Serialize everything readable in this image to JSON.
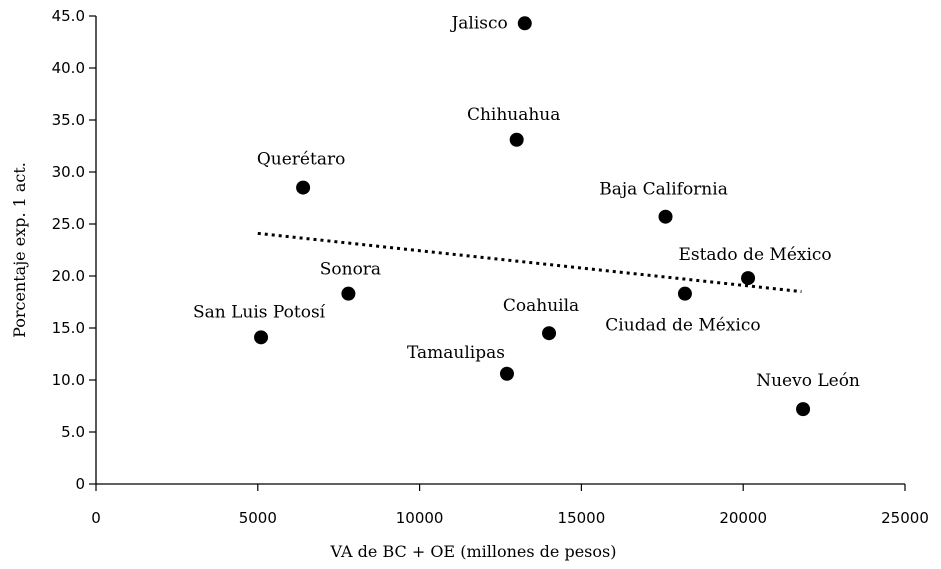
{
  "chart_data": {
    "type": "scatter",
    "title": "",
    "xlabel": "VA de BC + OE (millones de pesos)",
    "ylabel": "Porcentaje exp. 1 act.",
    "xlim": [
      0,
      25000
    ],
    "ylim": [
      0,
      45
    ],
    "xticks": [
      0,
      5000,
      10000,
      15000,
      20000,
      25000
    ],
    "xtick_labels": [
      "0",
      "5000",
      "10000",
      "15000",
      "20000",
      "25000"
    ],
    "yticks": [
      0,
      5,
      10,
      15,
      20,
      25,
      30,
      35,
      40,
      45
    ],
    "ytick_labels": [
      "0",
      "5.0",
      "10.0",
      "15.0",
      "20.0",
      "25.0",
      "30.0",
      "35.0",
      "40.0",
      "45.0"
    ],
    "grid": false,
    "points": [
      {
        "label": "Jalisco",
        "x": 13250,
        "y": 44.3
      },
      {
        "label": "Chihuahua",
        "x": 13000,
        "y": 33.1
      },
      {
        "label": "Querétaro",
        "x": 6400,
        "y": 28.5
      },
      {
        "label": "Baja California",
        "x": 17600,
        "y": 25.7
      },
      {
        "label": "Estado de México",
        "x": 20150,
        "y": 19.8
      },
      {
        "label": "Sonora",
        "x": 7800,
        "y": 18.3
      },
      {
        "label": "Ciudad de México",
        "x": 18200,
        "y": 18.3
      },
      {
        "label": "San Luis Potosí",
        "x": 5100,
        "y": 14.1
      },
      {
        "label": "Coahuila",
        "x": 14000,
        "y": 14.5
      },
      {
        "label": "Tamaulipas",
        "x": 12700,
        "y": 10.6
      },
      {
        "label": "Nuevo León",
        "x": 21850,
        "y": 7.2
      }
    ],
    "trendline": {
      "style": "dotted",
      "x": [
        5000,
        21800
      ],
      "y": [
        24.1,
        18.5
      ]
    }
  }
}
